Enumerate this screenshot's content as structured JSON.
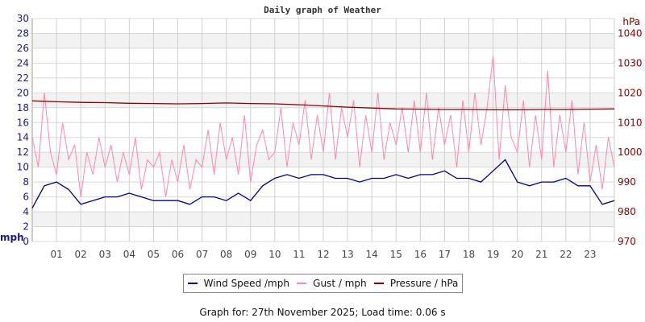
{
  "chart_data": {
    "type": "line",
    "title": "Daily graph of Weather",
    "left_axis": {
      "label": "mph",
      "range": [
        0,
        30
      ],
      "ticks": [
        0,
        2,
        4,
        6,
        8,
        10,
        12,
        14,
        16,
        18,
        20,
        22,
        24,
        26,
        28,
        30
      ],
      "color": "#1a1a8c"
    },
    "right_axis": {
      "label": "hPa",
      "range": [
        970,
        1045
      ],
      "ticks": [
        970,
        980,
        990,
        1000,
        1010,
        1020,
        1030,
        1040
      ],
      "color": "#8b0000"
    },
    "x_ticks": [
      "01",
      "02",
      "03",
      "04",
      "05",
      "06",
      "07",
      "08",
      "09",
      "10",
      "11",
      "12",
      "13",
      "14",
      "15",
      "16",
      "17",
      "18",
      "19",
      "20",
      "21",
      "22",
      "23"
    ],
    "x_range_hours": [
      0,
      24
    ],
    "grid": true,
    "legend_position": "bottom",
    "series": [
      {
        "name": "Wind Speed /mph",
        "color": "#000080",
        "axis": "left",
        "step_hours": 0.5,
        "values": [
          4.5,
          7.5,
          8,
          7,
          5,
          5.5,
          6,
          6,
          6.5,
          6,
          5.5,
          5.5,
          5.5,
          5,
          6,
          6,
          5.5,
          6.5,
          5.5,
          7.5,
          8.5,
          9,
          8.5,
          9,
          9,
          8.5,
          8.5,
          8,
          8.5,
          8.5,
          9,
          8.5,
          9,
          9,
          9.5,
          8.5,
          8.5,
          8,
          9.5,
          11,
          8,
          7.5,
          8,
          8,
          8.5,
          7.5,
          7.5,
          5,
          5.5
        ]
      },
      {
        "name": "Gust / mph",
        "color": "#ff88aa",
        "axis": "left",
        "step_hours": 0.25,
        "values": [
          14,
          10,
          20,
          12,
          9,
          16,
          11,
          13,
          6,
          12,
          9,
          14,
          10,
          13,
          8,
          12,
          9,
          14,
          7,
          11,
          10,
          12,
          6,
          11,
          8,
          13,
          7,
          11,
          10,
          15,
          9,
          16,
          11,
          14,
          9,
          17,
          8,
          13,
          15,
          11,
          12,
          18,
          10,
          16,
          13,
          19,
          11,
          17,
          12,
          20,
          11,
          18,
          14,
          19,
          10,
          17,
          12,
          20,
          11,
          16,
          13,
          18,
          12,
          19,
          12,
          20,
          11,
          18,
          13,
          17,
          10,
          19,
          12,
          20,
          13,
          18,
          25,
          11,
          21,
          14,
          12,
          19,
          10,
          17,
          11,
          23,
          10,
          17,
          12,
          19,
          9,
          16,
          8,
          13,
          7,
          14,
          10
        ]
      },
      {
        "name": "Pressure / hPa",
        "color": "#8b0000",
        "axis": "right",
        "step_hours": 1,
        "values": [
          1017.3,
          1017,
          1016.8,
          1016.7,
          1016.5,
          1016.4,
          1016.3,
          1016.4,
          1016.6,
          1016.4,
          1016.3,
          1016,
          1015.6,
          1015.2,
          1014.9,
          1014.6,
          1014.5,
          1014.4,
          1014.4,
          1014.3,
          1014.3,
          1014.4,
          1014.4,
          1014.5,
          1014.6
        ]
      }
    ]
  },
  "footer": "Graph for: 27th November 2025; Load time: 0.06 s"
}
